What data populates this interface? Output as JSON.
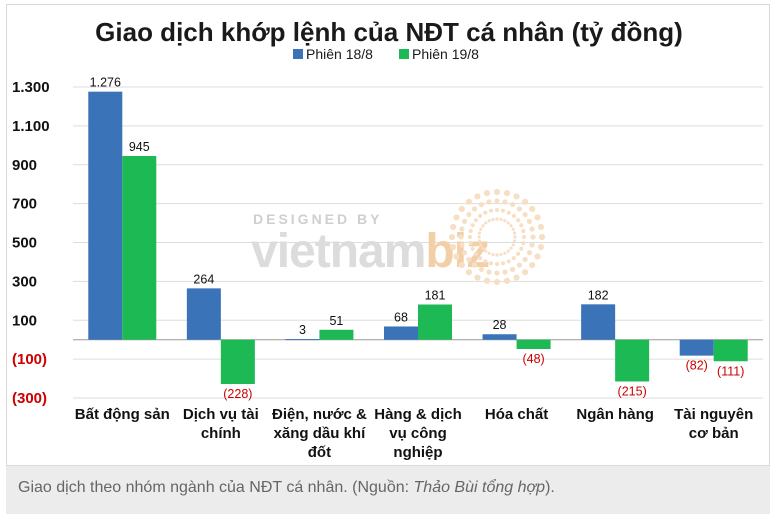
{
  "chart_data": {
    "type": "bar",
    "title": "Giao dịch khớp lệnh của NĐT cá nhân (tỷ đồng)",
    "categories": [
      [
        "Bất động sản"
      ],
      [
        "Dịch vụ tài",
        "chính"
      ],
      [
        "Điện, nước &",
        "xăng dầu khí",
        "đốt"
      ],
      [
        "Hàng & dịch",
        "vụ công",
        "nghiệp"
      ],
      [
        "Hóa chất"
      ],
      [
        "Ngân hàng"
      ],
      [
        "Tài nguyên",
        "cơ bản"
      ]
    ],
    "series": [
      {
        "name": "Phiên 18/8",
        "color": "#3a73b8",
        "values": [
          1276,
          264,
          3,
          68,
          28,
          182,
          -82
        ],
        "labels": [
          "1.276",
          "264",
          "3",
          "68",
          "28",
          "182",
          "(82)"
        ]
      },
      {
        "name": "Phiên 19/8",
        "color": "#1db954",
        "values": [
          945,
          -228,
          51,
          181,
          -48,
          -215,
          -111
        ],
        "labels": [
          "945",
          "(228)",
          "51",
          "181",
          "(48)",
          "(215)",
          "(111)"
        ]
      }
    ],
    "ylim": [
      -300,
      1300
    ],
    "yticks": [
      {
        "value": 1300,
        "label": "1.300",
        "negative": false
      },
      {
        "value": 1100,
        "label": "1.100",
        "negative": false
      },
      {
        "value": 900,
        "label": "900",
        "negative": false
      },
      {
        "value": 700,
        "label": "700",
        "negative": false
      },
      {
        "value": 500,
        "label": "500",
        "negative": false
      },
      {
        "value": 300,
        "label": "300",
        "negative": false
      },
      {
        "value": 100,
        "label": "100",
        "negative": false
      },
      {
        "value": -100,
        "label": "(100)",
        "negative": true
      },
      {
        "value": -300,
        "label": "(300)",
        "negative": true
      }
    ],
    "negative_color": "#cc0000",
    "grid": true,
    "legend_position": "top-center",
    "xlabel": "",
    "ylabel": ""
  },
  "watermark": {
    "small": "DESIGNED BY",
    "brand_left": "vietnam",
    "brand_right": "biz"
  },
  "caption": {
    "prefix": "Giao dịch theo nhóm ngành của NĐT cá nhân. (Nguồn: ",
    "source": "Thảo Bùi tổng hợp",
    "suffix": ")."
  }
}
